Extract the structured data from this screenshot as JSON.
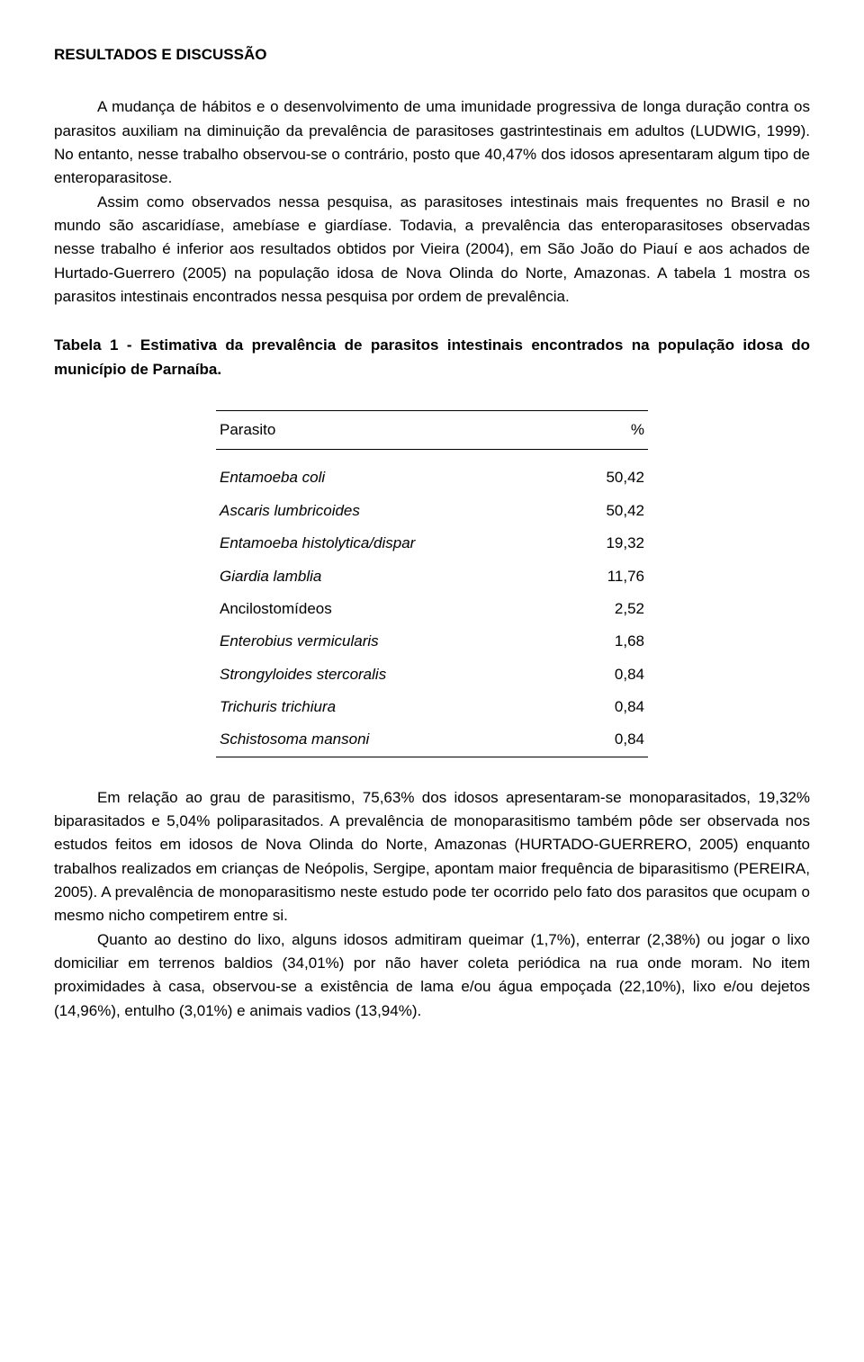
{
  "heading": "RESULTADOS E DISCUSSÃO",
  "paragraph1": "A mudança de hábitos e o desenvolvimento de uma imunidade progressiva de longa duração contra os parasitos auxiliam na diminuição da prevalência de parasitoses gastrintestinais em adultos (LUDWIG, 1999). No entanto, nesse trabalho observou-se o contrário, posto que 40,47% dos idosos apresentaram algum tipo de enteroparasitose.",
  "paragraph2": "Assim como observados nessa pesquisa, as parasitoses intestinais mais frequentes no Brasil e no mundo são ascaridíase, amebíase e giardíase. Todavia, a prevalência das enteroparasitoses observadas nesse trabalho é inferior aos resultados obtidos por Vieira (2004), em São João do Piauí e aos achados de Hurtado-Guerrero (2005) na população idosa de Nova Olinda do Norte, Amazonas. A tabela 1 mostra os parasitos intestinais encontrados nessa pesquisa por ordem de prevalência.",
  "tableCaption": "Tabela 1 - Estimativa da prevalência de parasitos intestinais encontrados na população idosa do município de Parnaíba.",
  "table": {
    "col1": "Parasito",
    "col2": "%",
    "rows": [
      {
        "name": "Entamoeba coli",
        "pct": "50,42",
        "italic": true
      },
      {
        "name": "Ascaris lumbricoides",
        "pct": "50,42",
        "italic": true
      },
      {
        "name": "Entamoeba histolytica/dispar",
        "pct": "19,32",
        "italic": true
      },
      {
        "name": "Giardia lamblia",
        "pct": "11,76",
        "italic": true
      },
      {
        "name": "Ancilostomídeos",
        "pct": "2,52",
        "italic": false
      },
      {
        "name": "Enterobius vermicularis",
        "pct": "1,68",
        "italic": true
      },
      {
        "name": "Strongyloides stercoralis",
        "pct": "0,84",
        "italic": true
      },
      {
        "name": "Trichuris trichiura",
        "pct": "0,84",
        "italic": true
      },
      {
        "name": "Schistosoma mansoni",
        "pct": "0,84",
        "italic": true
      }
    ]
  },
  "paragraph3": "Em relação ao grau de parasitismo, 75,63% dos idosos apresentaram-se monoparasitados, 19,32% biparasitados e 5,04% poliparasitados. A prevalência de monoparasitismo também pôde ser observada nos estudos feitos em idosos de Nova Olinda do Norte, Amazonas (HURTADO-GUERRERO, 2005) enquanto trabalhos realizados em crianças de Neópolis, Sergipe, apontam maior frequência de biparasitismo (PEREIRA, 2005). A prevalência de monoparasitismo neste estudo pode ter ocorrido pelo fato dos parasitos que ocupam o mesmo nicho competirem entre si.",
  "paragraph4": "Quanto ao destino do lixo, alguns idosos admitiram queimar (1,7%), enterrar (2,38%) ou jogar o lixo domiciliar em terrenos baldios (34,01%) por não haver coleta periódica na rua onde moram. No item proximidades à casa, observou-se a existência de lama e/ou água empoçada (22,10%), lixo e/ou dejetos (14,96%), entulho (3,01%) e animais vadios (13,94%)."
}
